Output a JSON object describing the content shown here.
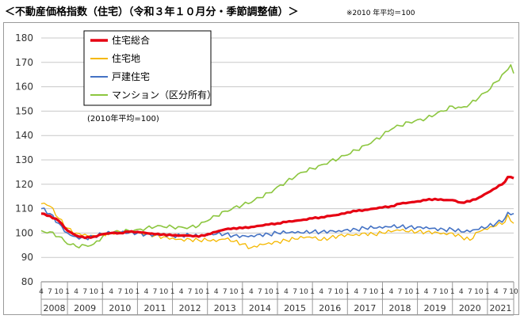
{
  "title": "＜不動産価格指数（住宅）（令和３年１０月分・季節調整値）＞",
  "note": "※2010 年平均＝100",
  "chart_data": {
    "type": "line",
    "ylim": [
      80,
      180
    ],
    "yticks": [
      80,
      90,
      100,
      110,
      120,
      130,
      140,
      150,
      160,
      170,
      180
    ],
    "grid": true,
    "legend_position": "top-left",
    "base_note": "(2010年平均=100)",
    "month_labels": [
      "4",
      "7",
      "10"
    ],
    "years": [
      "2008",
      "2009",
      "2010",
      "2011",
      "2012",
      "2013",
      "2014",
      "2015",
      "2016",
      "2017",
      "2018",
      "2019",
      "2020",
      "2021"
    ],
    "x_start": "2008-04",
    "x_end": "2021-10",
    "series": [
      {
        "name": "住宅総合",
        "color": "#e60012",
        "width": 3.2,
        "points": [
          [
            "2008-04",
            108
          ],
          [
            "2008-07",
            107
          ],
          [
            "2008-10",
            105
          ],
          [
            "2009-01",
            101
          ],
          [
            "2009-04",
            99
          ],
          [
            "2009-07",
            98
          ],
          [
            "2009-10",
            98.5
          ],
          [
            "2010-01",
            99.5
          ],
          [
            "2010-04",
            100
          ],
          [
            "2010-07",
            100
          ],
          [
            "2010-10",
            100.5
          ],
          [
            "2011-01",
            100.5
          ],
          [
            "2011-04",
            100
          ],
          [
            "2011-07",
            99.5
          ],
          [
            "2011-10",
            99.5
          ],
          [
            "2012-01",
            99
          ],
          [
            "2012-04",
            99
          ],
          [
            "2012-07",
            99
          ],
          [
            "2012-10",
            98.5
          ],
          [
            "2013-01",
            99.5
          ],
          [
            "2013-04",
            100.5
          ],
          [
            "2013-07",
            101.5
          ],
          [
            "2013-10",
            102
          ],
          [
            "2014-01",
            102
          ],
          [
            "2014-04",
            102.5
          ],
          [
            "2014-07",
            103
          ],
          [
            "2014-10",
            103.5
          ],
          [
            "2015-01",
            104
          ],
          [
            "2015-04",
            104.5
          ],
          [
            "2015-07",
            105
          ],
          [
            "2015-10",
            105.5
          ],
          [
            "2016-01",
            106
          ],
          [
            "2016-04",
            106.5
          ],
          [
            "2016-07",
            107
          ],
          [
            "2016-10",
            107.5
          ],
          [
            "2017-01",
            108.5
          ],
          [
            "2017-04",
            109
          ],
          [
            "2017-07",
            109.5
          ],
          [
            "2017-10",
            110
          ],
          [
            "2018-01",
            110.5
          ],
          [
            "2018-04",
            111
          ],
          [
            "2018-07",
            112
          ],
          [
            "2018-10",
            112.5
          ],
          [
            "2019-01",
            113
          ],
          [
            "2019-04",
            113.5
          ],
          [
            "2019-07",
            114
          ],
          [
            "2019-10",
            113.5
          ],
          [
            "2020-01",
            113.5
          ],
          [
            "2020-04",
            112.5
          ],
          [
            "2020-07",
            113
          ],
          [
            "2020-10",
            114.5
          ],
          [
            "2021-01",
            116.5
          ],
          [
            "2021-04",
            118.5
          ],
          [
            "2021-07",
            121
          ],
          [
            "2021-08",
            123
          ],
          [
            "2021-10",
            122.5
          ]
        ]
      },
      {
        "name": "住宅地",
        "color": "#f5b800",
        "width": 1.3,
        "points": [
          [
            "2008-04",
            112
          ],
          [
            "2008-07",
            111
          ],
          [
            "2008-10",
            106
          ],
          [
            "2009-01",
            102
          ],
          [
            "2009-04",
            100
          ],
          [
            "2009-07",
            99.5
          ],
          [
            "2009-10",
            99
          ],
          [
            "2010-01",
            99.5
          ],
          [
            "2010-04",
            100
          ],
          [
            "2010-07",
            100
          ],
          [
            "2010-10",
            100
          ],
          [
            "2011-01",
            100
          ],
          [
            "2011-04",
            99.5
          ],
          [
            "2011-07",
            99
          ],
          [
            "2011-10",
            98.5
          ],
          [
            "2012-01",
            98
          ],
          [
            "2012-04",
            97.5
          ],
          [
            "2012-07",
            97.5
          ],
          [
            "2012-10",
            97
          ],
          [
            "2013-01",
            97
          ],
          [
            "2013-04",
            96.5
          ],
          [
            "2013-07",
            97.5
          ],
          [
            "2013-10",
            96.5
          ],
          [
            "2014-01",
            95.5
          ],
          [
            "2014-04",
            94
          ],
          [
            "2014-07",
            95.5
          ],
          [
            "2014-10",
            96
          ],
          [
            "2015-01",
            96.5
          ],
          [
            "2015-04",
            97
          ],
          [
            "2015-07",
            97.5
          ],
          [
            "2015-10",
            98
          ],
          [
            "2016-01",
            98
          ],
          [
            "2016-04",
            97
          ],
          [
            "2016-07",
            98
          ],
          [
            "2016-10",
            99
          ],
          [
            "2017-01",
            99.5
          ],
          [
            "2017-04",
            99.5
          ],
          [
            "2017-07",
            100
          ],
          [
            "2017-10",
            99.5
          ],
          [
            "2018-01",
            100
          ],
          [
            "2018-04",
            100.5
          ],
          [
            "2018-07",
            101
          ],
          [
            "2018-10",
            100.5
          ],
          [
            "2019-01",
            100.5
          ],
          [
            "2019-04",
            100.5
          ],
          [
            "2019-07",
            100.5
          ],
          [
            "2019-10",
            100
          ],
          [
            "2020-01",
            100
          ],
          [
            "2020-04",
            98.5
          ],
          [
            "2020-07",
            97
          ],
          [
            "2020-10",
            100.5
          ],
          [
            "2021-01",
            101.5
          ],
          [
            "2021-04",
            103
          ],
          [
            "2021-07",
            104.5
          ],
          [
            "2021-08",
            107.5
          ],
          [
            "2021-10",
            104
          ]
        ]
      },
      {
        "name": "戸建住宅",
        "color": "#4472c4",
        "width": 1.6,
        "points": [
          [
            "2008-04",
            110
          ],
          [
            "2008-07",
            108
          ],
          [
            "2008-10",
            104
          ],
          [
            "2009-01",
            100
          ],
          [
            "2009-04",
            98.5
          ],
          [
            "2009-07",
            98
          ],
          [
            "2009-10",
            98.5
          ],
          [
            "2010-01",
            99.5
          ],
          [
            "2010-04",
            100
          ],
          [
            "2010-07",
            100
          ],
          [
            "2010-10",
            100
          ],
          [
            "2011-01",
            100
          ],
          [
            "2011-04",
            99.5
          ],
          [
            "2011-07",
            99.5
          ],
          [
            "2011-10",
            99.5
          ],
          [
            "2012-01",
            99
          ],
          [
            "2012-04",
            99
          ],
          [
            "2012-07",
            99
          ],
          [
            "2012-10",
            98.5
          ],
          [
            "2013-01",
            99
          ],
          [
            "2013-04",
            99.5
          ],
          [
            "2013-07",
            99.5
          ],
          [
            "2013-10",
            99
          ],
          [
            "2014-01",
            99
          ],
          [
            "2014-04",
            99
          ],
          [
            "2014-07",
            99.5
          ],
          [
            "2014-10",
            99.5
          ],
          [
            "2015-01",
            100
          ],
          [
            "2015-04",
            100
          ],
          [
            "2015-07",
            100
          ],
          [
            "2015-10",
            100
          ],
          [
            "2016-01",
            100.5
          ],
          [
            "2016-04",
            100.5
          ],
          [
            "2016-07",
            101
          ],
          [
            "2016-10",
            101
          ],
          [
            "2017-01",
            101.5
          ],
          [
            "2017-04",
            101.5
          ],
          [
            "2017-07",
            102
          ],
          [
            "2017-10",
            102
          ],
          [
            "2018-01",
            102
          ],
          [
            "2018-04",
            102.5
          ],
          [
            "2018-07",
            102.5
          ],
          [
            "2018-10",
            102.5
          ],
          [
            "2019-01",
            102.5
          ],
          [
            "2019-04",
            102.5
          ],
          [
            "2019-07",
            102
          ],
          [
            "2019-10",
            101.5
          ],
          [
            "2020-01",
            101.5
          ],
          [
            "2020-04",
            100.5
          ],
          [
            "2020-07",
            100.5
          ],
          [
            "2020-10",
            101.5
          ],
          [
            "2021-01",
            102.5
          ],
          [
            "2021-04",
            104
          ],
          [
            "2021-07",
            106
          ],
          [
            "2021-08",
            108.5
          ],
          [
            "2021-10",
            108
          ]
        ]
      },
      {
        "name": "マンション（区分所有）",
        "color": "#8cc63f",
        "width": 1.6,
        "points": [
          [
            "2008-04",
            101
          ],
          [
            "2008-07",
            100.5
          ],
          [
            "2008-10",
            98.5
          ],
          [
            "2009-01",
            95.5
          ],
          [
            "2009-04",
            94.5
          ],
          [
            "2009-07",
            95
          ],
          [
            "2009-10",
            95.5
          ],
          [
            "2010-01",
            98.5
          ],
          [
            "2010-04",
            100
          ],
          [
            "2010-07",
            100.5
          ],
          [
            "2010-10",
            101
          ],
          [
            "2011-01",
            101.5
          ],
          [
            "2011-04",
            102
          ],
          [
            "2011-07",
            102.5
          ],
          [
            "2011-10",
            102.5
          ],
          [
            "2012-01",
            102.5
          ],
          [
            "2012-04",
            102.5
          ],
          [
            "2012-07",
            102.5
          ],
          [
            "2012-10",
            103
          ],
          [
            "2013-01",
            105
          ],
          [
            "2013-04",
            107
          ],
          [
            "2013-07",
            109
          ],
          [
            "2013-10",
            110.5
          ],
          [
            "2014-01",
            111.5
          ],
          [
            "2014-04",
            112.5
          ],
          [
            "2014-07",
            114.5
          ],
          [
            "2014-10",
            116.5
          ],
          [
            "2015-01",
            119
          ],
          [
            "2015-04",
            121
          ],
          [
            "2015-07",
            123
          ],
          [
            "2015-10",
            125
          ],
          [
            "2016-01",
            126.5
          ],
          [
            "2016-04",
            128
          ],
          [
            "2016-07",
            129.5
          ],
          [
            "2016-10",
            130.5
          ],
          [
            "2017-01",
            132
          ],
          [
            "2017-04",
            134
          ],
          [
            "2017-07",
            136
          ],
          [
            "2017-10",
            138
          ],
          [
            "2018-01",
            140
          ],
          [
            "2018-04",
            142.5
          ],
          [
            "2018-07",
            144
          ],
          [
            "2018-10",
            145.5
          ],
          [
            "2019-01",
            146.5
          ],
          [
            "2019-04",
            147
          ],
          [
            "2019-07",
            148.5
          ],
          [
            "2019-10",
            150
          ],
          [
            "2020-01",
            152
          ],
          [
            "2020-04",
            151.5
          ],
          [
            "2020-07",
            153
          ],
          [
            "2020-10",
            155.5
          ],
          [
            "2021-01",
            158
          ],
          [
            "2021-04",
            162
          ],
          [
            "2021-07",
            166
          ],
          [
            "2021-09",
            169
          ],
          [
            "2021-10",
            165.5
          ]
        ]
      }
    ]
  }
}
